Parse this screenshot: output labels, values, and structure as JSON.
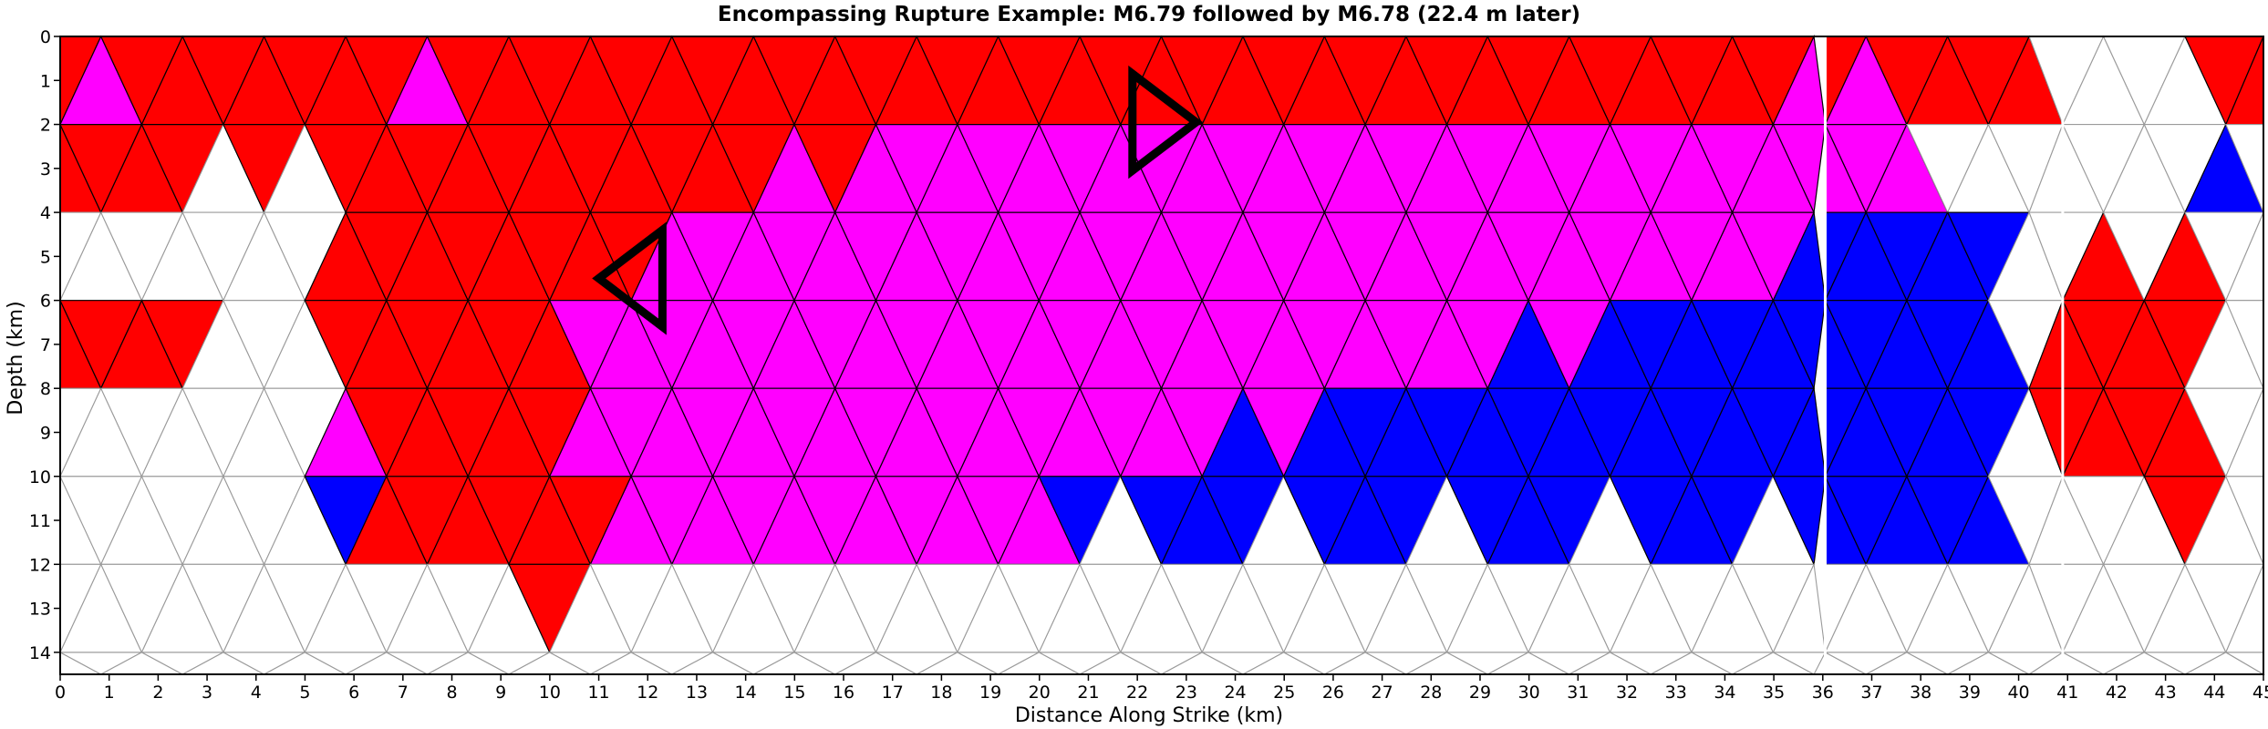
{
  "chart_data": {
    "type": "heatmap",
    "title": "Encompassing Rupture Example: M6.79 followed by M6.78 (22.4 m later)",
    "xlabel": "Distance Along Strike (km)",
    "ylabel": "Depth (km)",
    "xlim": [
      0,
      45
    ],
    "ylim": [
      14.5,
      0
    ],
    "xticks": [
      "0",
      "1",
      "2",
      "3",
      "4",
      "5",
      "6",
      "7",
      "8",
      "9",
      "10",
      "11",
      "12",
      "13",
      "14",
      "15",
      "16",
      "17",
      "18",
      "19",
      "20",
      "21",
      "22",
      "23",
      "24",
      "25",
      "26",
      "27",
      "28",
      "29",
      "30",
      "31",
      "32",
      "33",
      "34",
      "35",
      "36",
      "37",
      "38",
      "39",
      "40",
      "41",
      "42",
      "43",
      "44",
      "45"
    ],
    "yticks": [
      "0",
      "1",
      "2",
      "3",
      "4",
      "5",
      "6",
      "7",
      "8",
      "9",
      "10",
      "11",
      "12",
      "13",
      "14"
    ],
    "mesh": {
      "type": "triangular",
      "column_width_km": 1.666,
      "row_height_km": 2,
      "fault_sections_x_km": [
        [
          0,
          36.05
        ],
        [
          36.05,
          40.9
        ],
        [
          40.9,
          45
        ]
      ]
    },
    "legend": "none",
    "grid": false,
    "colors": {
      "first_event_only": "#ff0000",
      "both_events": "#ff00ff",
      "second_event_only": "#0000ff",
      "not_ruptured": "#ffffff",
      "mesh_edges": "#9a9a9a",
      "ruptured_edges": "#000000",
      "hypocenter_markers": "#000000"
    },
    "hypocenters": [
      {
        "x": 12.3,
        "y": 5.5,
        "direction": "left"
      },
      {
        "x": 21.9,
        "y": 1.95,
        "direction": "right"
      }
    ]
  }
}
